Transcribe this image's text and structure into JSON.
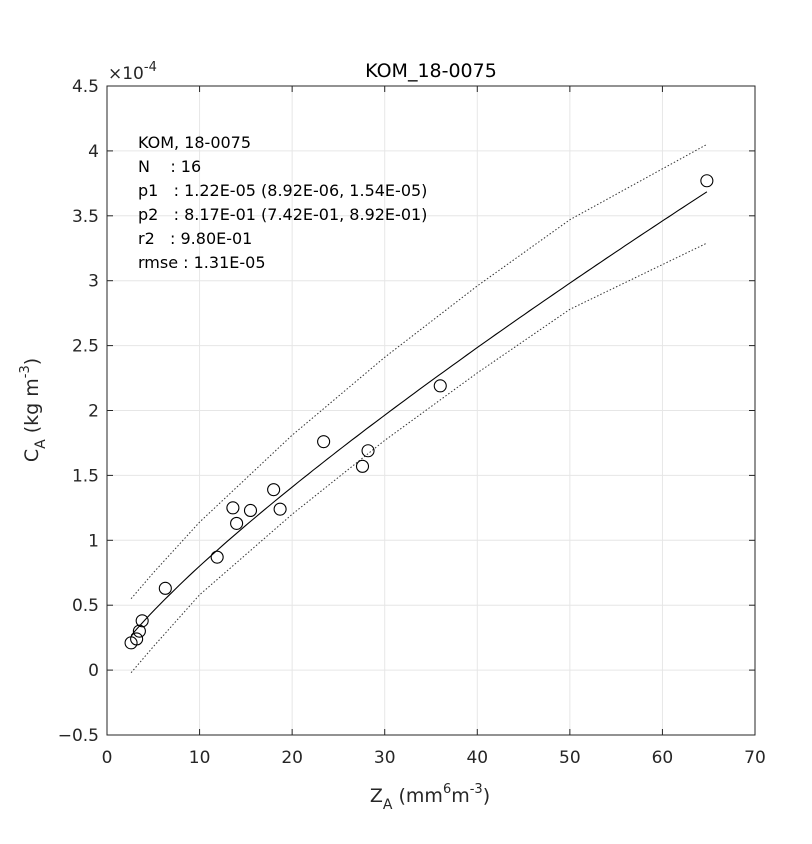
{
  "chart_data": {
    "type": "scatter",
    "title": "KOM_18-0075",
    "xlabel": {
      "base": "Z",
      "sub": "A",
      "unit_pre": " (mm",
      "unit_sup1": "6",
      "unit_mid": "m",
      "unit_sup2": "-3",
      "unit_post": ")"
    },
    "ylabel": {
      "base": "C",
      "sub": "A",
      "unit_pre": " (kg m",
      "unit_sup": "-3",
      "unit_post": ")"
    },
    "y_multiplier": {
      "text": "×10",
      "exp": "-4"
    },
    "xlim": [
      0,
      70
    ],
    "ylim": [
      -0.5,
      4.5
    ],
    "x_ticks": [
      0,
      10,
      20,
      30,
      40,
      50,
      60,
      70
    ],
    "x_tick_labels": [
      "0",
      "10",
      "20",
      "30",
      "40",
      "50",
      "60",
      "70"
    ],
    "y_ticks": [
      -0.5,
      0,
      0.5,
      1,
      1.5,
      2,
      2.5,
      3,
      3.5,
      4,
      4.5
    ],
    "y_tick_labels": [
      "−0.5",
      "0",
      "0.5",
      "1",
      "1.5",
      "2",
      "2.5",
      "3",
      "3.5",
      "4",
      "4.5"
    ],
    "grid": true,
    "points": [
      {
        "x": 2.6,
        "y": 0.21
      },
      {
        "x": 3.2,
        "y": 0.24
      },
      {
        "x": 3.5,
        "y": 0.3
      },
      {
        "x": 3.8,
        "y": 0.38
      },
      {
        "x": 6.3,
        "y": 0.63
      },
      {
        "x": 11.9,
        "y": 0.87
      },
      {
        "x": 13.6,
        "y": 1.25
      },
      {
        "x": 14.0,
        "y": 1.13
      },
      {
        "x": 15.5,
        "y": 1.23
      },
      {
        "x": 18.0,
        "y": 1.39
      },
      {
        "x": 18.7,
        "y": 1.24
      },
      {
        "x": 23.4,
        "y": 1.76
      },
      {
        "x": 27.6,
        "y": 1.57
      },
      {
        "x": 28.2,
        "y": 1.69
      },
      {
        "x": 36.0,
        "y": 2.19
      },
      {
        "x": 64.8,
        "y": 3.77
      }
    ],
    "fit": {
      "p1": 0.122,
      "p2": 0.817,
      "x_range": [
        2.6,
        64.8
      ]
    },
    "bounds": {
      "upper": [
        [
          2.6,
          0.55
        ],
        [
          5,
          0.75
        ],
        [
          10,
          1.14
        ],
        [
          20,
          1.81
        ],
        [
          30,
          2.41
        ],
        [
          40,
          2.96
        ],
        [
          50,
          3.47
        ],
        [
          64.8,
          4.05
        ]
      ],
      "lower": [
        [
          2.6,
          -0.02
        ],
        [
          5,
          0.18
        ],
        [
          10,
          0.58
        ],
        [
          20,
          1.2
        ],
        [
          30,
          1.77
        ],
        [
          40,
          2.29
        ],
        [
          50,
          2.78
        ],
        [
          64.8,
          3.29
        ]
      ]
    },
    "annotation": [
      "KOM, 18-0075",
      "N    : 16",
      "p1   : 1.22E-05 (8.92E-06, 1.54E-05)",
      "p2   : 8.17E-01 (7.42E-01, 8.92E-01)",
      "r2   : 9.80E-01",
      "rmse : 1.31E-05"
    ]
  }
}
